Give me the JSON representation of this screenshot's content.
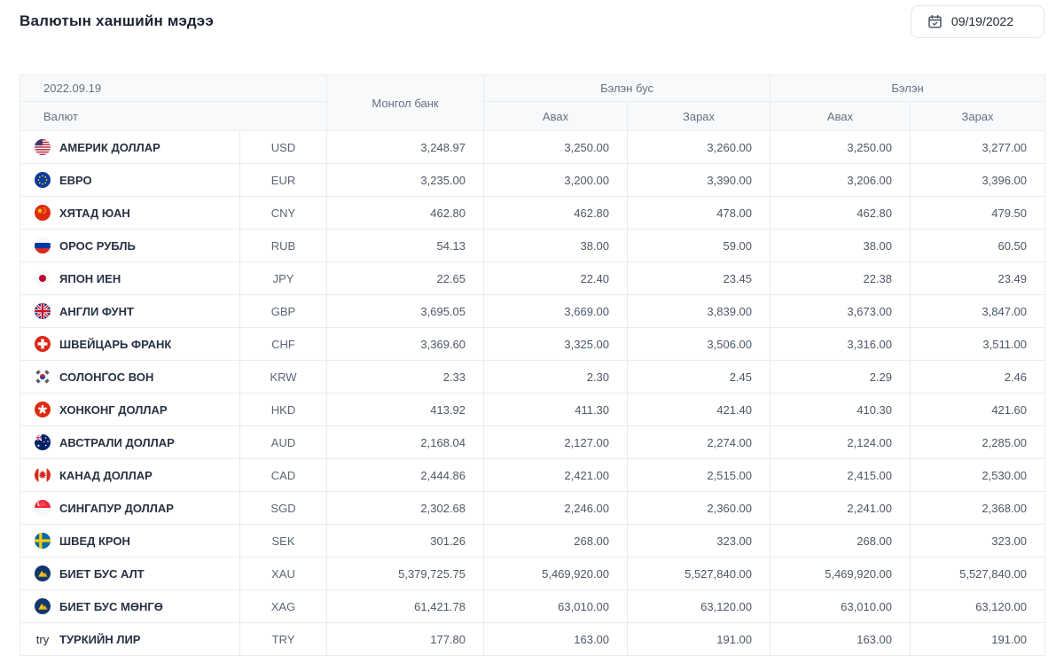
{
  "page": {
    "title": "Валютын ханшийн мэдээ"
  },
  "date_picker": {
    "value": "09/19/2022",
    "icon": "calendar-icon"
  },
  "table": {
    "header": {
      "date": "2022.09.19",
      "currency_label": "Валют",
      "mongol_bank": "Монгол банк",
      "non_cash": "Бэлэн бус",
      "cash": "Бэлэн",
      "buy": "Авах",
      "sell": "Зарах"
    },
    "rows": [
      {
        "flag": "us-flag-icon",
        "name": "АМЕРИК ДОЛЛАР",
        "code": "USD",
        "mongol_bank": "3,248.97",
        "non_cash_buy": "3,250.00",
        "non_cash_sell": "3,260.00",
        "cash_buy": "3,250.00",
        "cash_sell": "3,277.00"
      },
      {
        "flag": "eu-flag-icon",
        "name": "ЕВРО",
        "code": "EUR",
        "mongol_bank": "3,235.00",
        "non_cash_buy": "3,200.00",
        "non_cash_sell": "3,390.00",
        "cash_buy": "3,206.00",
        "cash_sell": "3,396.00"
      },
      {
        "flag": "china-flag-icon",
        "name": "ХЯТАД ЮАН",
        "code": "CNY",
        "mongol_bank": "462.80",
        "non_cash_buy": "462.80",
        "non_cash_sell": "478.00",
        "cash_buy": "462.80",
        "cash_sell": "479.50"
      },
      {
        "flag": "russia-flag-icon",
        "name": "ОРОС РУБЛЬ",
        "code": "RUB",
        "mongol_bank": "54.13",
        "non_cash_buy": "38.00",
        "non_cash_sell": "59.00",
        "cash_buy": "38.00",
        "cash_sell": "60.50"
      },
      {
        "flag": "japan-flag-icon",
        "name": "ЯПОН ИЕН",
        "code": "JPY",
        "mongol_bank": "22.65",
        "non_cash_buy": "22.40",
        "non_cash_sell": "23.45",
        "cash_buy": "22.38",
        "cash_sell": "23.49"
      },
      {
        "flag": "uk-flag-icon",
        "name": "АНГЛИ ФУНТ",
        "code": "GBP",
        "mongol_bank": "3,695.05",
        "non_cash_buy": "3,669.00",
        "non_cash_sell": "3,839.00",
        "cash_buy": "3,673.00",
        "cash_sell": "3,847.00"
      },
      {
        "flag": "swiss-flag-icon",
        "name": "ШВЕЙЦАРЬ ФРАНК",
        "code": "CHF",
        "mongol_bank": "3,369.60",
        "non_cash_buy": "3,325.00",
        "non_cash_sell": "3,506.00",
        "cash_buy": "3,316.00",
        "cash_sell": "3,511.00"
      },
      {
        "flag": "korea-flag-icon",
        "name": "СОЛОНГОС ВОН",
        "code": "KRW",
        "mongol_bank": "2.33",
        "non_cash_buy": "2.30",
        "non_cash_sell": "2.45",
        "cash_buy": "2.29",
        "cash_sell": "2.46"
      },
      {
        "flag": "hongkong-flag-icon",
        "name": "ХОНКОНГ ДОЛЛАР",
        "code": "HKD",
        "mongol_bank": "413.92",
        "non_cash_buy": "411.30",
        "non_cash_sell": "421.40",
        "cash_buy": "410.30",
        "cash_sell": "421.60"
      },
      {
        "flag": "australia-flag-icon",
        "name": "АВСТРАЛИ ДОЛЛАР",
        "code": "AUD",
        "mongol_bank": "2,168.04",
        "non_cash_buy": "2,127.00",
        "non_cash_sell": "2,274.00",
        "cash_buy": "2,124.00",
        "cash_sell": "2,285.00"
      },
      {
        "flag": "canada-flag-icon",
        "name": "КАНАД ДОЛЛАР",
        "code": "CAD",
        "mongol_bank": "2,444.86",
        "non_cash_buy": "2,421.00",
        "non_cash_sell": "2,515.00",
        "cash_buy": "2,415.00",
        "cash_sell": "2,530.00"
      },
      {
        "flag": "singapore-flag-icon",
        "name": "СИНГАПУР ДОЛЛАР",
        "code": "SGD",
        "mongol_bank": "2,302.68",
        "non_cash_buy": "2,246.00",
        "non_cash_sell": "2,360.00",
        "cash_buy": "2,241.00",
        "cash_sell": "2,368.00"
      },
      {
        "flag": "sweden-flag-icon",
        "name": "ШВЕД КРОН",
        "code": "SEK",
        "mongol_bank": "301.26",
        "non_cash_buy": "268.00",
        "non_cash_sell": "323.00",
        "cash_buy": "268.00",
        "cash_sell": "323.00"
      },
      {
        "flag": "gold-icon",
        "name": "БИЕТ БУС АЛТ",
        "code": "XAU",
        "mongol_bank": "5,379,725.75",
        "non_cash_buy": "5,469,920.00",
        "non_cash_sell": "5,527,840.00",
        "cash_buy": "5,469,920.00",
        "cash_sell": "5,527,840.00"
      },
      {
        "flag": "silver-icon",
        "name": "БИЕТ БУС МӨНГӨ",
        "code": "XAG",
        "mongol_bank": "61,421.78",
        "non_cash_buy": "63,010.00",
        "non_cash_sell": "63,120.00",
        "cash_buy": "63,010.00",
        "cash_sell": "63,120.00"
      },
      {
        "flag": "missing-flag-text",
        "flag_text": "try",
        "name": "ТУРКИЙН ЛИР",
        "code": "TRY",
        "mongol_bank": "177.80",
        "non_cash_buy": "163.00",
        "non_cash_sell": "191.00",
        "cash_buy": "163.00",
        "cash_sell": "191.00"
      }
    ]
  },
  "colors": {
    "header_bg": "#f7f9fa",
    "border": "#e9ecf0",
    "title_text": "#1a2332",
    "header_text": "#667080",
    "name_text": "#273142",
    "value_text": "#4d5866"
  }
}
